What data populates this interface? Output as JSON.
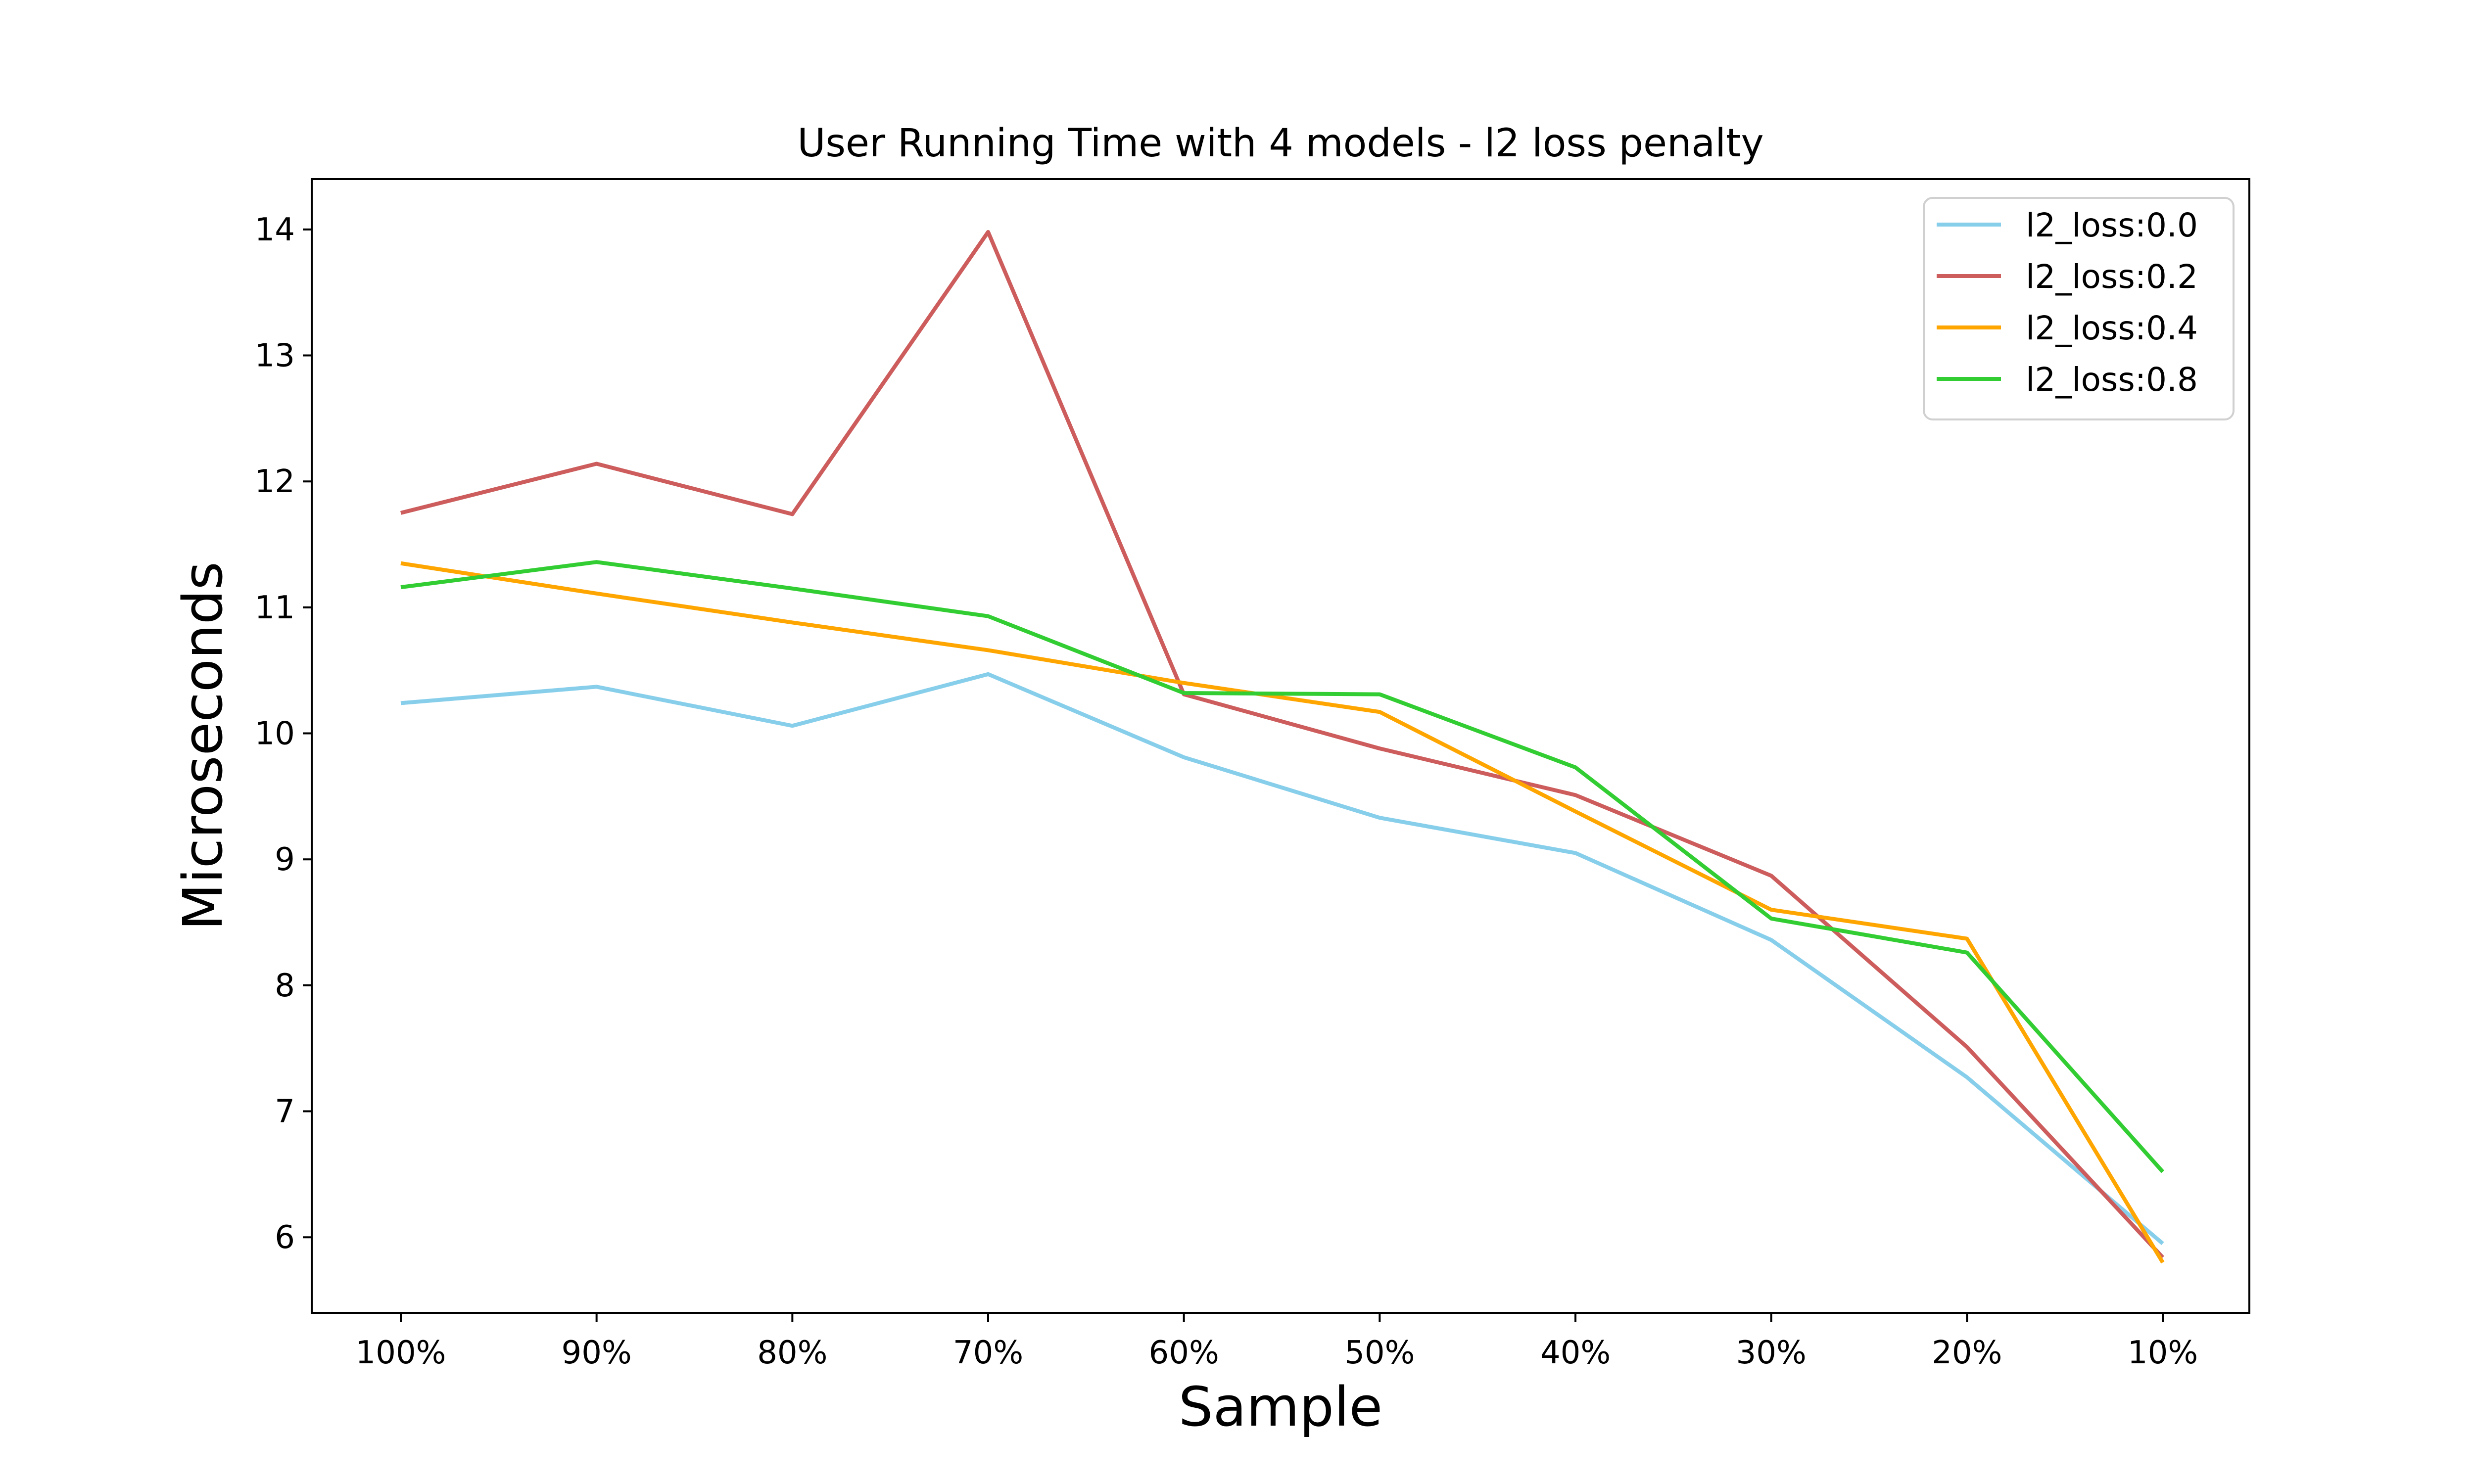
{
  "chart_data": {
    "type": "line",
    "title": "User Running Time with 4 models - l2 loss penalty",
    "xlabel": "Sample",
    "ylabel": "Microseconds",
    "categories": [
      "100%",
      "90%",
      "80%",
      "70%",
      "60%",
      "50%",
      "40%",
      "30%",
      "20%",
      "10%"
    ],
    "ylim": [
      5.4,
      14.4
    ],
    "yticks": [
      6,
      7,
      8,
      9,
      10,
      11,
      12,
      13,
      14
    ],
    "grid": false,
    "legend_position": "top-right",
    "series": [
      {
        "name": "l2_loss:0.0",
        "color": "#87CEEB",
        "values": [
          10.24,
          10.37,
          10.06,
          10.47,
          9.81,
          9.33,
          9.05,
          8.36,
          7.27,
          5.95
        ]
      },
      {
        "name": "l2_loss:0.2",
        "color": "#CD5C5C",
        "values": [
          11.75,
          12.14,
          11.74,
          13.98,
          10.31,
          9.88,
          9.51,
          8.87,
          7.51,
          5.84
        ]
      },
      {
        "name": "l2_loss:0.4",
        "color": "#FFA500",
        "values": [
          11.35,
          11.11,
          10.88,
          10.66,
          10.4,
          10.17,
          9.38,
          8.6,
          8.37,
          5.8
        ]
      },
      {
        "name": "l2_loss:0.8",
        "color": "#32CD32",
        "values": [
          11.16,
          11.36,
          11.15,
          10.93,
          10.32,
          10.31,
          9.73,
          8.53,
          8.26,
          6.52
        ]
      }
    ]
  }
}
